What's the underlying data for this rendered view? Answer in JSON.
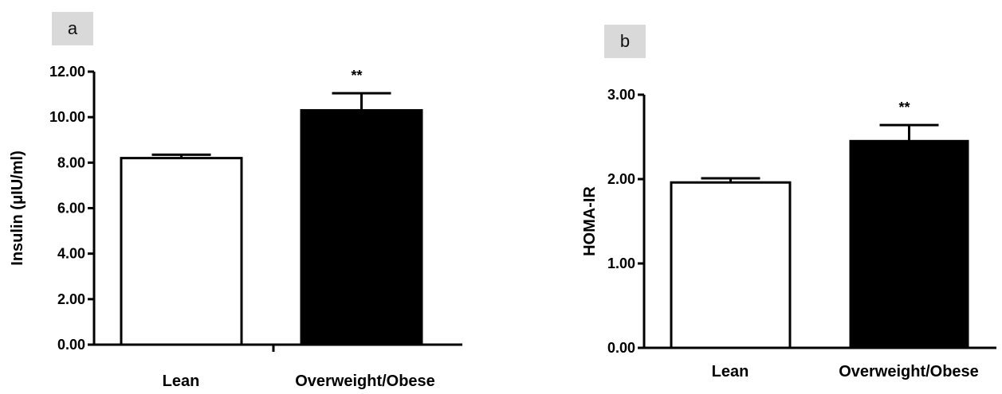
{
  "chart_data": [
    {
      "type": "bar",
      "panel": "a",
      "categories": [
        "Lean",
        "Overweight/Obese"
      ],
      "values": [
        8.2,
        10.3
      ],
      "errors": [
        0.15,
        0.75
      ],
      "colors": [
        "#ffffff",
        "#000000"
      ],
      "significance": [
        "",
        "**"
      ],
      "ylabel": "Insulin (μIU/ml)",
      "ylim": [
        0,
        12
      ],
      "yticks": [
        "0.00",
        "2.00",
        "4.00",
        "6.00",
        "8.00",
        "10.00",
        "12.00"
      ],
      "grid": false
    },
    {
      "type": "bar",
      "panel": "b",
      "categories": [
        "Lean",
        "Overweight/Obese"
      ],
      "values": [
        1.96,
        2.45
      ],
      "errors": [
        0.05,
        0.19
      ],
      "colors": [
        "#ffffff",
        "#000000"
      ],
      "significance": [
        "",
        "**"
      ],
      "ylabel": "HOMA-IR",
      "ylim": [
        0,
        3
      ],
      "yticks": [
        "0.00",
        "1.00",
        "2.00",
        "3.00"
      ],
      "grid": false
    }
  ]
}
